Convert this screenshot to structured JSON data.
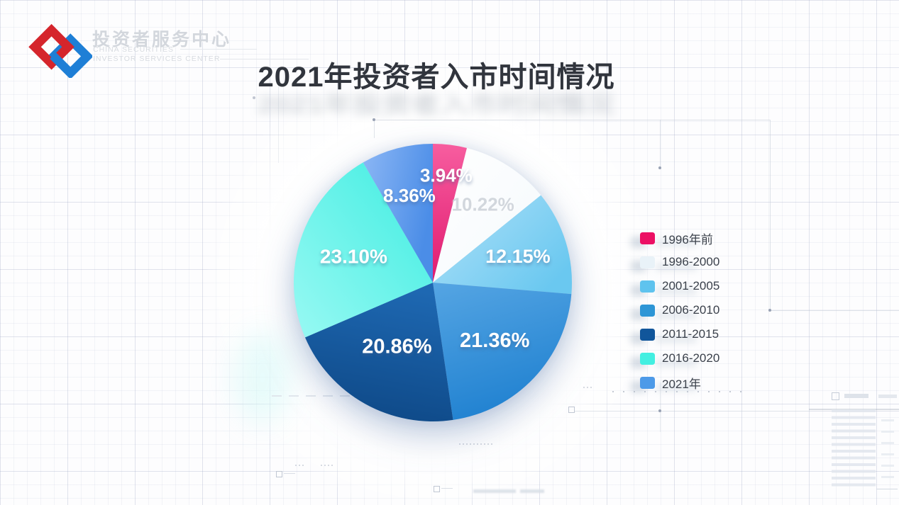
{
  "logo": {
    "cn": "投资者服务中心",
    "en_line1": "CHINA SECURITIES",
    "en_line2": "INVESTOR SERVICES CENTER",
    "mark_red": "#D5252C",
    "mark_blue": "#1E7FD6"
  },
  "title": {
    "text": "2021年投资者入市时间情况"
  },
  "chart_data": {
    "type": "pie",
    "title": "2021年投资者入市时间情况",
    "value_format": "percent",
    "start_angle_deg": 0,
    "direction": "clockwise",
    "legend_position": "right",
    "segments": [
      {
        "label": "1996年前",
        "value": 3.94,
        "display": "3.94%",
        "legend_color": "#EC1064",
        "gradient": [
          "#F75D9F",
          "#E01A6F"
        ],
        "gradient_dir": [
          0,
          0,
          0,
          1
        ],
        "label_color": "#FFFFFF",
        "label_radius": 0.78,
        "label_size": 26
      },
      {
        "label": "1996-2000",
        "value": 10.22,
        "display": "10.22%",
        "legend_color": "#E9F2F8",
        "gradient": [
          "#FFFFFF",
          "#F4F9FC"
        ],
        "gradient_dir": [
          0,
          0,
          1,
          1
        ],
        "label_color": "#D2D7DD",
        "label_radius": 0.67,
        "label_size": 26
      },
      {
        "label": "2001-2005",
        "value": 12.15,
        "display": "12.15%",
        "legend_color": "#5FC3EE",
        "gradient": [
          "#B0E1F8",
          "#6AC8F0"
        ],
        "gradient_dir": [
          0,
          0,
          1,
          0.7
        ],
        "label_color": "#FFFFFF",
        "label_radius": 0.64,
        "label_size": 27
      },
      {
        "label": "2006-2010",
        "value": 21.36,
        "display": "21.36%",
        "legend_color": "#2E96D6",
        "gradient": [
          "#55A5E3",
          "#2182D1"
        ],
        "gradient_dir": [
          0,
          0,
          0.3,
          1
        ],
        "label_color": "#FFFFFF",
        "label_radius": 0.61,
        "label_size": 29
      },
      {
        "label": "2011-2015",
        "value": 20.86,
        "display": "20.86%",
        "legend_color": "#11569B",
        "gradient": [
          "#1E68B2",
          "#0E4886"
        ],
        "gradient_dir": [
          0.5,
          0,
          0.3,
          1
        ],
        "label_color": "#FFFFFF",
        "label_radius": 0.53,
        "label_size": 29
      },
      {
        "label": "2016-2020",
        "value": 23.1,
        "display": "23.10%",
        "legend_color": "#43EFE1",
        "gradient": [
          "#3FEDE1",
          "#98F9F3"
        ],
        "gradient_dir": [
          1,
          0,
          0,
          1
        ],
        "label_color": "#FFFFFF",
        "label_radius": 0.6,
        "label_size": 28
      },
      {
        "label": "2021年",
        "value": 8.36,
        "display": "8.36%",
        "legend_color": "#4D9AE8",
        "gradient": [
          "#8CB7F5",
          "#4B8DE7"
        ],
        "gradient_dir": [
          0,
          0,
          1,
          0.4
        ],
        "label_color": "#FFFFFF",
        "label_radius": 0.65,
        "label_size": 26
      }
    ]
  }
}
